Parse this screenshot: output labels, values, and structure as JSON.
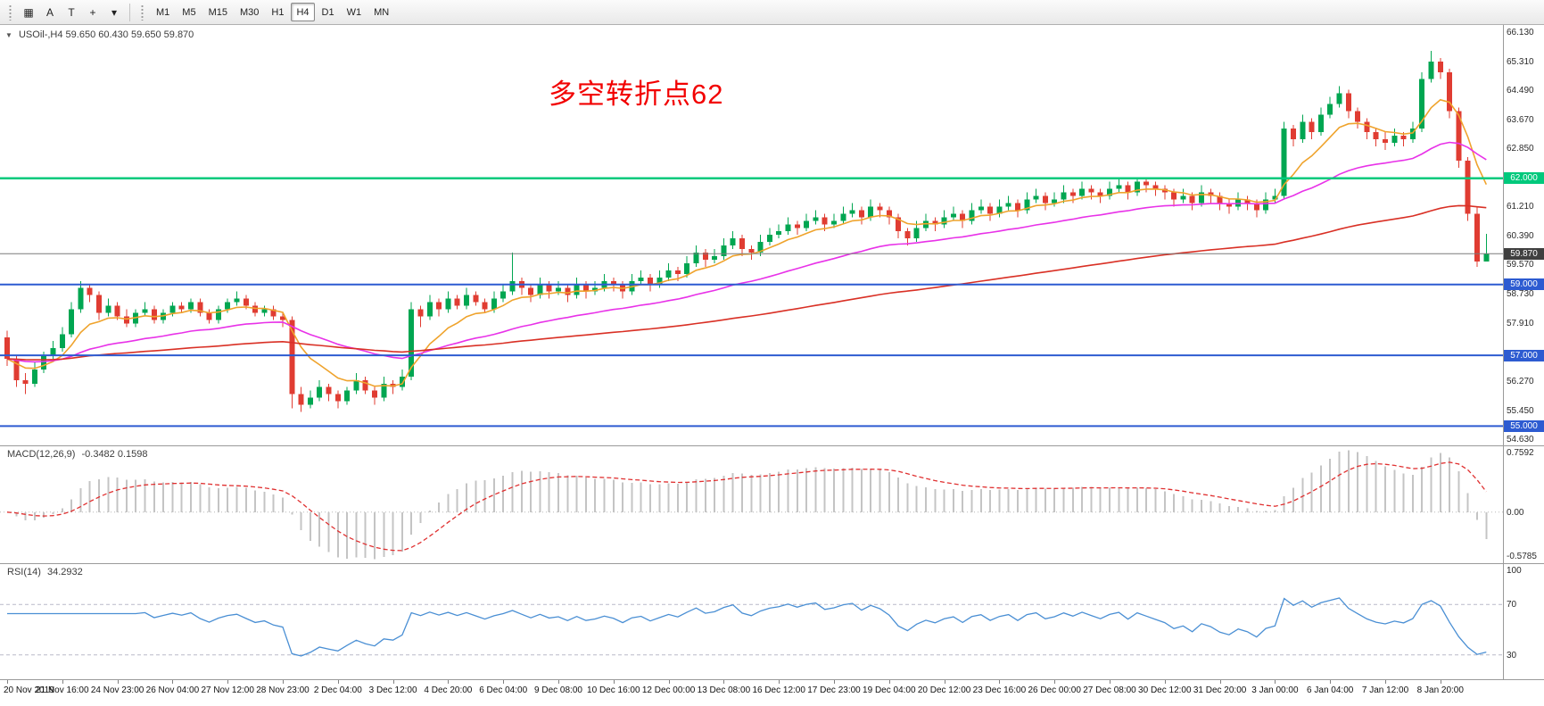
{
  "toolbar": {
    "icons": [
      {
        "name": "chart-grid-icon",
        "glyph": "▦"
      },
      {
        "name": "auto-scroll-icon",
        "glyph": "A"
      },
      {
        "name": "text-tool-icon",
        "glyph": "T"
      },
      {
        "name": "crosshair-icon",
        "glyph": "+"
      },
      {
        "name": "cursor-dropdown-icon",
        "glyph": "▾"
      }
    ],
    "timeframes": [
      "M1",
      "M5",
      "M15",
      "M30",
      "H1",
      "H4",
      "D1",
      "W1",
      "MN"
    ],
    "active_timeframe": "H4"
  },
  "chart": {
    "marker": "▼",
    "title": "USOil-,H4 59.650 60.430 59.650 59.870",
    "annotation": "多空转折点62",
    "annotation_color": "#f20000"
  },
  "chart_data": {
    "type": "candlestick",
    "symbol": "USOil-",
    "timeframe": "H4",
    "ohlc_display": {
      "open": "59.650",
      "high": "60.430",
      "low": "59.650",
      "close": "59.870"
    },
    "up_color": "#00a651",
    "down_color": "#e03c32",
    "ma_colors": [
      "#efa32c",
      "#e832e8",
      "#d93025"
    ],
    "price_axis_labels": [
      "66.130",
      "65.310",
      "64.490",
      "63.670",
      "62.850",
      "61.210",
      "60.390",
      "59.570",
      "58.730",
      "57.910",
      "56.270",
      "55.450",
      "54.630"
    ],
    "hlines": [
      {
        "price": 62.0,
        "label": "62.000",
        "color": "#00c97c"
      },
      {
        "price": 59.0,
        "label": "59.000",
        "color": "#2d5bd1"
      },
      {
        "price": 57.0,
        "label": "57.000",
        "color": "#2d5bd1"
      },
      {
        "price": 55.0,
        "label": "55.000",
        "color": "#2d5bd1"
      }
    ],
    "bid": {
      "price": 59.87,
      "label": "59.870",
      "color": "#3f3f3f"
    },
    "candles": [
      [
        57.5,
        57.7,
        56.7,
        56.9
      ],
      [
        56.9,
        57.0,
        56.1,
        56.3
      ],
      [
        56.3,
        56.5,
        55.9,
        56.2
      ],
      [
        56.2,
        56.8,
        56.1,
        56.6
      ],
      [
        56.6,
        57.1,
        56.5,
        57.0
      ],
      [
        57.0,
        57.4,
        56.9,
        57.2
      ],
      [
        57.2,
        57.8,
        57.1,
        57.6
      ],
      [
        57.6,
        58.5,
        57.5,
        58.3
      ],
      [
        58.3,
        59.1,
        58.2,
        58.9
      ],
      [
        58.9,
        59.0,
        58.5,
        58.7
      ],
      [
        58.7,
        58.8,
        58.0,
        58.2
      ],
      [
        58.2,
        58.6,
        58.1,
        58.4
      ],
      [
        58.4,
        58.5,
        58.0,
        58.1
      ],
      [
        58.1,
        58.3,
        57.8,
        57.9
      ],
      [
        57.9,
        58.3,
        57.8,
        58.2
      ],
      [
        58.2,
        58.5,
        58.1,
        58.3
      ],
      [
        58.3,
        58.4,
        57.9,
        58.0
      ],
      [
        58.0,
        58.3,
        57.9,
        58.2
      ],
      [
        58.2,
        58.5,
        58.1,
        58.4
      ],
      [
        58.4,
        58.5,
        58.2,
        58.3
      ],
      [
        58.3,
        58.6,
        58.2,
        58.5
      ],
      [
        58.5,
        58.6,
        58.1,
        58.2
      ],
      [
        58.2,
        58.3,
        57.9,
        58.0
      ],
      [
        58.0,
        58.4,
        57.9,
        58.3
      ],
      [
        58.3,
        58.6,
        58.2,
        58.5
      ],
      [
        58.5,
        58.8,
        58.4,
        58.6
      ],
      [
        58.6,
        58.7,
        58.3,
        58.4
      ],
      [
        58.4,
        58.5,
        58.1,
        58.2
      ],
      [
        58.2,
        58.4,
        58.1,
        58.3
      ],
      [
        58.3,
        58.4,
        58.0,
        58.1
      ],
      [
        58.1,
        58.2,
        57.8,
        58.0
      ],
      [
        58.0,
        58.1,
        55.5,
        55.9
      ],
      [
        55.9,
        56.1,
        55.4,
        55.6
      ],
      [
        55.6,
        56.0,
        55.5,
        55.8
      ],
      [
        55.8,
        56.3,
        55.7,
        56.1
      ],
      [
        56.1,
        56.2,
        55.7,
        55.9
      ],
      [
        55.9,
        56.0,
        55.5,
        55.7
      ],
      [
        55.7,
        56.1,
        55.6,
        56.0
      ],
      [
        56.0,
        56.5,
        55.9,
        56.3
      ],
      [
        56.3,
        56.4,
        55.9,
        56.0
      ],
      [
        56.0,
        56.1,
        55.6,
        55.8
      ],
      [
        55.8,
        56.4,
        55.7,
        56.2
      ],
      [
        56.2,
        56.3,
        55.9,
        56.1
      ],
      [
        56.1,
        56.6,
        56.0,
        56.4
      ],
      [
        56.4,
        58.5,
        56.3,
        58.3
      ],
      [
        58.3,
        58.4,
        57.8,
        58.1
      ],
      [
        58.1,
        58.7,
        58.0,
        58.5
      ],
      [
        58.5,
        58.6,
        58.1,
        58.3
      ],
      [
        58.3,
        58.8,
        58.2,
        58.6
      ],
      [
        58.6,
        58.7,
        58.3,
        58.4
      ],
      [
        58.4,
        58.9,
        58.3,
        58.7
      ],
      [
        58.7,
        58.8,
        58.4,
        58.5
      ],
      [
        58.5,
        58.6,
        58.2,
        58.3
      ],
      [
        58.3,
        58.8,
        58.2,
        58.6
      ],
      [
        58.6,
        59.0,
        58.5,
        58.8
      ],
      [
        58.8,
        59.9,
        58.7,
        59.1
      ],
      [
        59.1,
        59.2,
        58.7,
        58.9
      ],
      [
        58.9,
        59.0,
        58.5,
        58.7
      ],
      [
        58.7,
        59.2,
        58.6,
        59.0
      ],
      [
        59.0,
        59.1,
        58.6,
        58.8
      ],
      [
        58.8,
        59.1,
        58.7,
        58.9
      ],
      [
        58.9,
        59.0,
        58.5,
        58.7
      ],
      [
        58.7,
        59.2,
        58.6,
        59.0
      ],
      [
        59.0,
        59.1,
        58.6,
        58.8
      ],
      [
        58.8,
        59.1,
        58.7,
        58.9
      ],
      [
        58.9,
        59.3,
        58.8,
        59.1
      ],
      [
        59.1,
        59.2,
        58.8,
        59.0
      ],
      [
        59.0,
        59.1,
        58.6,
        58.8
      ],
      [
        58.8,
        59.3,
        58.7,
        59.1
      ],
      [
        59.1,
        59.4,
        59.0,
        59.2
      ],
      [
        59.2,
        59.3,
        58.8,
        59.0
      ],
      [
        59.0,
        59.4,
        58.9,
        59.2
      ],
      [
        59.2,
        59.6,
        59.1,
        59.4
      ],
      [
        59.4,
        59.5,
        59.1,
        59.3
      ],
      [
        59.3,
        59.8,
        59.2,
        59.6
      ],
      [
        59.6,
        60.1,
        59.5,
        59.9
      ],
      [
        59.9,
        60.0,
        59.5,
        59.7
      ],
      [
        59.7,
        60.0,
        59.6,
        59.8
      ],
      [
        59.8,
        60.3,
        59.7,
        60.1
      ],
      [
        60.1,
        60.5,
        60.0,
        60.3
      ],
      [
        60.3,
        60.4,
        59.8,
        60.0
      ],
      [
        60.0,
        60.1,
        59.7,
        59.9
      ],
      [
        59.9,
        60.4,
        59.8,
        60.2
      ],
      [
        60.2,
        60.6,
        60.1,
        60.4
      ],
      [
        60.4,
        60.7,
        60.3,
        60.5
      ],
      [
        60.5,
        60.9,
        60.4,
        60.7
      ],
      [
        60.7,
        60.8,
        60.4,
        60.6
      ],
      [
        60.6,
        61.0,
        60.5,
        60.8
      ],
      [
        60.8,
        61.1,
        60.7,
        60.9
      ],
      [
        60.9,
        61.0,
        60.5,
        60.7
      ],
      [
        60.7,
        61.0,
        60.6,
        60.8
      ],
      [
        60.8,
        61.2,
        60.7,
        61.0
      ],
      [
        61.0,
        61.3,
        60.9,
        61.1
      ],
      [
        61.1,
        61.2,
        60.7,
        60.9
      ],
      [
        60.9,
        61.4,
        60.8,
        61.2
      ],
      [
        61.2,
        61.3,
        60.9,
        61.1
      ],
      [
        61.1,
        61.2,
        60.7,
        60.9
      ],
      [
        60.9,
        61.0,
        60.3,
        60.5
      ],
      [
        60.5,
        60.6,
        60.1,
        60.3
      ],
      [
        60.3,
        60.8,
        60.2,
        60.6
      ],
      [
        60.6,
        61.0,
        60.5,
        60.8
      ],
      [
        60.8,
        60.9,
        60.5,
        60.7
      ],
      [
        60.7,
        61.1,
        60.6,
        60.9
      ],
      [
        60.9,
        61.2,
        60.8,
        61.0
      ],
      [
        61.0,
        61.1,
        60.6,
        60.8
      ],
      [
        60.8,
        61.3,
        60.7,
        61.1
      ],
      [
        61.1,
        61.4,
        61.0,
        61.2
      ],
      [
        61.2,
        61.3,
        60.8,
        61.0
      ],
      [
        61.0,
        61.4,
        60.9,
        61.2
      ],
      [
        61.2,
        61.5,
        61.1,
        61.3
      ],
      [
        61.3,
        61.4,
        60.9,
        61.1
      ],
      [
        61.1,
        61.6,
        61.0,
        61.4
      ],
      [
        61.4,
        61.7,
        61.3,
        61.5
      ],
      [
        61.5,
        61.6,
        61.1,
        61.3
      ],
      [
        61.3,
        61.6,
        61.2,
        61.4
      ],
      [
        61.4,
        61.8,
        61.3,
        61.6
      ],
      [
        61.6,
        61.7,
        61.3,
        61.5
      ],
      [
        61.5,
        61.9,
        61.4,
        61.7
      ],
      [
        61.7,
        61.8,
        61.4,
        61.6
      ],
      [
        61.6,
        61.7,
        61.3,
        61.5
      ],
      [
        61.5,
        61.9,
        61.4,
        61.7
      ],
      [
        61.7,
        62.0,
        61.6,
        61.8
      ],
      [
        61.8,
        61.9,
        61.4,
        61.6
      ],
      [
        61.6,
        62.0,
        61.5,
        61.9
      ],
      [
        61.9,
        62.0,
        61.6,
        61.8
      ],
      [
        61.8,
        61.9,
        61.5,
        61.7
      ],
      [
        61.7,
        61.8,
        61.4,
        61.6
      ],
      [
        61.6,
        61.7,
        61.2,
        61.4
      ],
      [
        61.4,
        61.7,
        61.3,
        61.5
      ],
      [
        61.5,
        61.6,
        61.1,
        61.3
      ],
      [
        61.3,
        61.8,
        61.2,
        61.6
      ],
      [
        61.6,
        61.7,
        61.3,
        61.5
      ],
      [
        61.5,
        61.6,
        61.1,
        61.3
      ],
      [
        61.3,
        61.4,
        61.0,
        61.2
      ],
      [
        61.2,
        61.6,
        61.1,
        61.4
      ],
      [
        61.4,
        61.5,
        61.1,
        61.3
      ],
      [
        61.3,
        61.4,
        60.9,
        61.1
      ],
      [
        61.1,
        61.6,
        61.0,
        61.4
      ],
      [
        61.4,
        61.7,
        61.3,
        61.5
      ],
      [
        61.5,
        63.6,
        61.4,
        63.4
      ],
      [
        63.4,
        63.5,
        62.9,
        63.1
      ],
      [
        63.1,
        63.8,
        63.0,
        63.6
      ],
      [
        63.6,
        63.7,
        63.1,
        63.3
      ],
      [
        63.3,
        64.0,
        63.2,
        63.8
      ],
      [
        63.8,
        64.3,
        63.7,
        64.1
      ],
      [
        64.1,
        64.6,
        64.0,
        64.4
      ],
      [
        64.4,
        64.5,
        63.7,
        63.9
      ],
      [
        63.9,
        64.0,
        63.4,
        63.6
      ],
      [
        63.6,
        63.7,
        63.1,
        63.3
      ],
      [
        63.3,
        63.4,
        62.9,
        63.1
      ],
      [
        63.1,
        63.3,
        62.8,
        63.0
      ],
      [
        63.0,
        63.4,
        62.9,
        63.2
      ],
      [
        63.2,
        63.3,
        62.9,
        63.1
      ],
      [
        63.1,
        63.6,
        63.0,
        63.4
      ],
      [
        63.4,
        65.0,
        63.3,
        64.8
      ],
      [
        64.8,
        65.6,
        64.7,
        65.3
      ],
      [
        65.3,
        65.4,
        64.8,
        65.0
      ],
      [
        65.0,
        65.1,
        63.7,
        63.9
      ],
      [
        63.9,
        64.0,
        62.3,
        62.5
      ],
      [
        62.5,
        62.6,
        60.8,
        61.0
      ],
      [
        61.0,
        61.2,
        59.5,
        59.65
      ],
      [
        59.65,
        60.43,
        59.65,
        59.87
      ]
    ],
    "time_labels": [
      "20 Nov 2019",
      "21 Nov 16:00",
      "24 Nov 23:00",
      "26 Nov 04:00",
      "27 Nov 12:00",
      "28 Nov 23:00",
      "2 Dec 04:00",
      "3 Dec 12:00",
      "4 Dec 20:00",
      "6 Dec 04:00",
      "9 Dec 08:00",
      "10 Dec 16:00",
      "12 Dec 00:00",
      "13 Dec 08:00",
      "16 Dec 12:00",
      "17 Dec 23:00",
      "19 Dec 04:00",
      "20 Dec 12:00",
      "23 Dec 16:00",
      "26 Dec 00:00",
      "27 Dec 08:00",
      "30 Dec 12:00",
      "31 Dec 20:00",
      "3 Jan 00:00",
      "6 Jan 04:00",
      "7 Jan 12:00",
      "8 Jan 20:00"
    ],
    "candles_per_label": 6,
    "macd": {
      "label": "MACD(12,26,9)",
      "values_text": "-0.3482 0.1598",
      "axis_labels": [
        "0.7592",
        "0.00",
        "-0.5785"
      ],
      "max": 0.7592,
      "min": -0.5785,
      "histogram_color": "#c4c4c4",
      "signal_color": "#e03030"
    },
    "rsi": {
      "label": "RSI(14)",
      "value_text": "34.2932",
      "axis_labels": [
        "100",
        "70",
        "30"
      ],
      "levels": [
        70,
        30
      ],
      "line_color": "#4a8fd4"
    }
  }
}
